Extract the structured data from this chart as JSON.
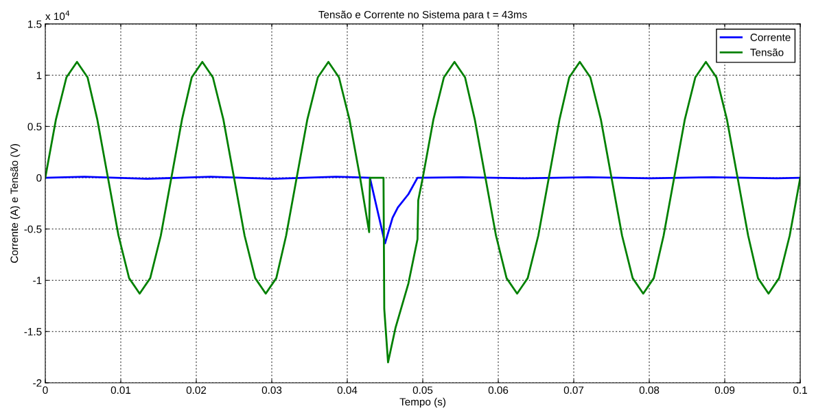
{
  "chart_data": {
    "type": "line",
    "title": "Tensão e Corrente no Sistema para t = 43ms",
    "xlabel": "Tempo (s)",
    "ylabel": "Corrente (A) e Tensão (V)",
    "annotations": [
      "x 10$^{4}$"
    ],
    "xlim": [
      0,
      0.1
    ],
    "ylim": [
      -2,
      1.5
    ],
    "xticks": [
      0,
      0.01,
      0.02,
      0.03,
      0.04,
      0.05,
      0.06,
      0.07,
      0.08,
      0.09,
      0.1
    ],
    "yticks": [
      -2,
      -1.5,
      -1,
      -0.5,
      0,
      0.5,
      1,
      1.5
    ],
    "grid": true,
    "legend": "top right",
    "line_style": "solid",
    "marker": "none",
    "series": [
      {
        "name": "Corrente",
        "color": "#0000ff",
        "x": [
          0,
          0.0052,
          0.0135,
          0.0219,
          0.0302,
          0.0385,
          0.043,
          0.045,
          0.046,
          0.0467,
          0.0481,
          0.0493,
          0.0552,
          0.0635,
          0.0719,
          0.0802,
          0.0885,
          0.0969,
          0.1
        ],
        "values": [
          0,
          0.01,
          -0.01,
          0.01,
          -0.01,
          0.01,
          0,
          -0.64,
          -0.39,
          -0.29,
          -0.16,
          0,
          0.005,
          -0.005,
          0.005,
          -0.005,
          0.005,
          -0.005,
          0
        ]
      },
      {
        "name": "Tensão",
        "color": "#008000",
        "x": [
          0,
          0.0014,
          0.0028,
          0.0042,
          0.0056,
          0.0069,
          0.0083,
          0.0097,
          0.0111,
          0.0125,
          0.0139,
          0.0153,
          0.0167,
          0.0181,
          0.0194,
          0.0208,
          0.0222,
          0.0236,
          0.025,
          0.0264,
          0.0278,
          0.0292,
          0.0306,
          0.0319,
          0.0333,
          0.0347,
          0.0361,
          0.0375,
          0.0389,
          0.0403,
          0.0417,
          0.0429,
          0.043,
          0.0448,
          0.0449,
          0.0454,
          0.0464,
          0.0481,
          0.0493,
          0.0494,
          0.05,
          0.0514,
          0.0528,
          0.0542,
          0.0556,
          0.0569,
          0.0583,
          0.0597,
          0.0611,
          0.0625,
          0.0639,
          0.0653,
          0.0667,
          0.0681,
          0.0694,
          0.0708,
          0.0722,
          0.0736,
          0.075,
          0.0764,
          0.0778,
          0.0792,
          0.0806,
          0.0819,
          0.0833,
          0.0847,
          0.0861,
          0.0875,
          0.0889,
          0.0903,
          0.0917,
          0.0931,
          0.0944,
          0.0958,
          0.0972,
          0.0986,
          0.1
        ],
        "values": [
          0,
          0.565,
          0.979,
          1.13,
          0.979,
          0.565,
          0,
          -0.565,
          -0.979,
          -1.13,
          -0.979,
          -0.565,
          0,
          0.565,
          0.979,
          1.13,
          0.979,
          0.565,
          0,
          -0.565,
          -0.979,
          -1.13,
          -0.979,
          -0.565,
          0,
          0.565,
          0.979,
          1.13,
          0.979,
          0.565,
          0,
          -0.53,
          0,
          0,
          -1.28,
          -1.8,
          -1.46,
          -1.03,
          -0.6,
          -0.22,
          0,
          0.565,
          0.979,
          1.13,
          0.979,
          0.565,
          0,
          -0.565,
          -0.979,
          -1.13,
          -0.979,
          -0.565,
          0,
          0.565,
          0.979,
          1.13,
          0.979,
          0.565,
          0,
          -0.565,
          -0.979,
          -1.13,
          -0.979,
          -0.565,
          0,
          0.565,
          0.979,
          1.13,
          0.979,
          0.565,
          0,
          -0.565,
          -0.979,
          -1.13,
          -0.979,
          -0.565,
          0
        ]
      }
    ]
  }
}
